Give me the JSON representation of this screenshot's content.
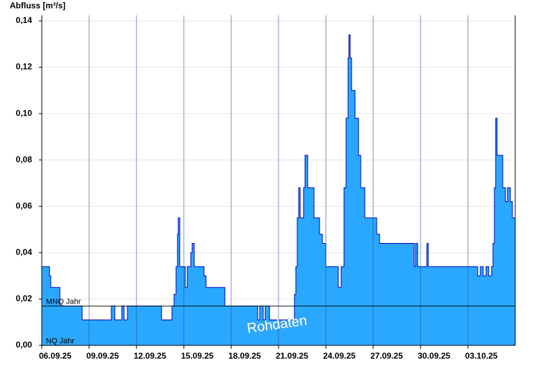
{
  "chart_data": {
    "type": "step-area",
    "y_label": "Abfluss [m³/s]",
    "watermark": "Rohdaten",
    "color": "#2aa8ff",
    "line_color": "#0000b4",
    "grid": true,
    "xlim": [
      0,
      30
    ],
    "xticks": [
      {
        "value": 0,
        "label": "06.09.25"
      },
      {
        "value": 3,
        "label": "09.09.25"
      },
      {
        "value": 6,
        "label": "12.09.25"
      },
      {
        "value": 9,
        "label": "15.09.25"
      },
      {
        "value": 12,
        "label": "18.09.25"
      },
      {
        "value": 15,
        "label": "21.09.25"
      },
      {
        "value": 18,
        "label": "24.09.25"
      },
      {
        "value": 21,
        "label": "27.09.25"
      },
      {
        "value": 24,
        "label": "30.09.25"
      },
      {
        "value": 27,
        "label": "03.10.25"
      }
    ],
    "ylim": [
      0,
      0.14
    ],
    "yticks": [
      {
        "value": 0,
        "label": "0,00"
      },
      {
        "value": 0.02,
        "label": "0,02"
      },
      {
        "value": 0.04,
        "label": "0,04"
      },
      {
        "value": 0.06,
        "label": "0,06"
      },
      {
        "value": 0.08,
        "label": "0,08"
      },
      {
        "value": 0.1,
        "label": "0,10"
      },
      {
        "value": 0.12,
        "label": "0,12"
      },
      {
        "value": 0.14,
        "label": "0,14"
      }
    ],
    "reference_lines": [
      {
        "label": "MNQ Jahr",
        "value": 0.017
      },
      {
        "label": "NQ Jahr",
        "value": 0
      }
    ],
    "x": [
      0,
      0.49,
      0.57,
      1.15,
      2.56,
      4.41,
      4.63,
      5.07,
      5.21,
      5.43,
      7.59,
      8.25,
      8.38,
      8.51,
      8.6,
      8.65,
      8.74,
      9.09,
      9.22,
      9.44,
      9.53,
      9.66,
      10.28,
      10.41,
      11.6,
      13.68,
      13.81,
      14.03,
      14.16,
      14.43,
      16.01,
      16.1,
      16.19,
      16.28,
      16.37,
      16.59,
      16.68,
      16.85,
      17.25,
      17.6,
      17.78,
      18.0,
      18.79,
      18.97,
      19.15,
      19.28,
      19.41,
      19.46,
      19.54,
      19.63,
      19.85,
      20.07,
      20.21,
      20.47,
      21.22,
      21.4,
      23.6,
      23.69,
      23.82,
      24.4,
      24.49,
      27.62,
      27.79,
      27.97,
      28.15,
      28.32,
      28.5,
      28.59,
      28.68,
      28.76,
      28.85,
      29.21,
      29.38,
      29.51,
      29.69,
      29.82
    ],
    "values": [
      0.034,
      0.03,
      0.025,
      0.017,
      0.011,
      0.017,
      0.011,
      0.017,
      0.011,
      0.017,
      0.011,
      0.017,
      0.022,
      0.034,
      0.048,
      0.055,
      0.034,
      0.025,
      0.034,
      0.04,
      0.044,
      0.034,
      0.03,
      0.025,
      0.017,
      0.011,
      0.017,
      0.011,
      0.017,
      0.011,
      0.022,
      0.034,
      0.055,
      0.068,
      0.055,
      0.068,
      0.082,
      0.068,
      0.055,
      0.048,
      0.044,
      0.034,
      0.025,
      0.034,
      0.068,
      0.098,
      0.124,
      0.134,
      0.124,
      0.11,
      0.098,
      0.082,
      0.068,
      0.055,
      0.048,
      0.044,
      0.034,
      0.044,
      0.034,
      0.044,
      0.034,
      0.03,
      0.034,
      0.03,
      0.034,
      0.03,
      0.034,
      0.044,
      0.068,
      0.098,
      0.082,
      0.068,
      0.062,
      0.068,
      0.062,
      0.055
    ]
  }
}
